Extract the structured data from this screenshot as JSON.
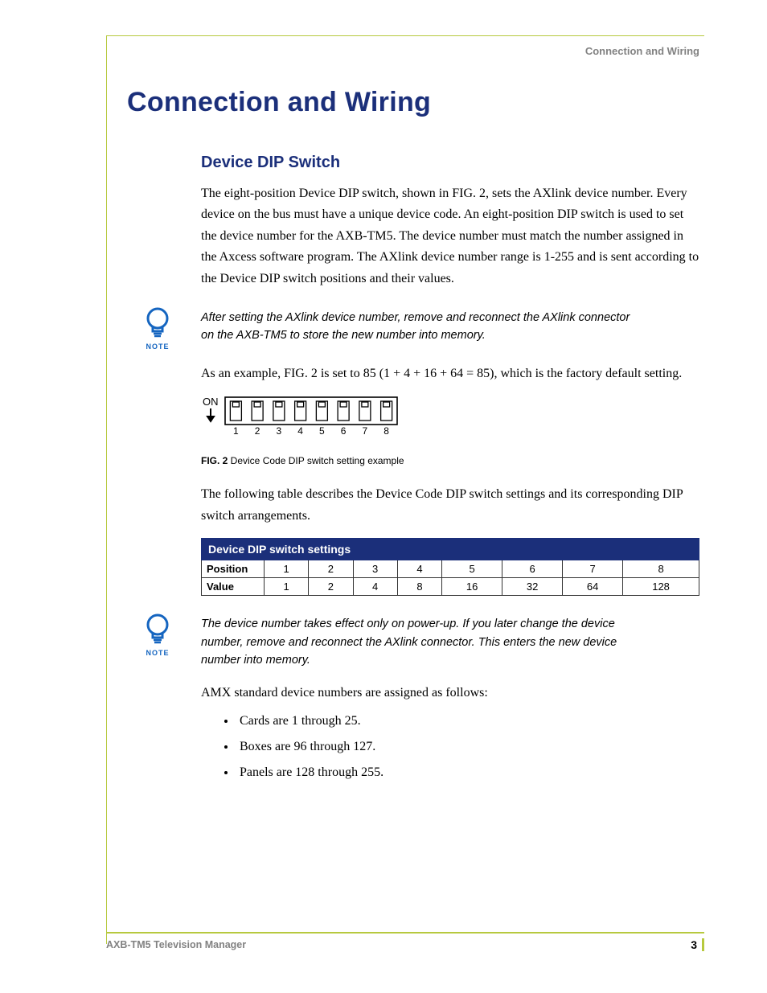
{
  "colors": {
    "brand_blue": "#1b2f7a",
    "rule_green": "#b7c93e",
    "grey_text": "#828282",
    "note_blue": "#1565c0",
    "black": "#000000",
    "white": "#ffffff"
  },
  "header": {
    "running_title": "Connection and Wiring"
  },
  "title": "Connection and Wiring",
  "section": {
    "heading": "Device DIP Switch",
    "intro": "The eight-position Device DIP switch, shown in FIG. 2, sets the AXlink device number. Every device on the bus must have a unique device code. An eight-position DIP switch is used to set the device number for the AXB-TM5. The device number must match the number assigned in the Axcess software program. The AXlink device number range is 1-255 and is sent according to the Device DIP switch positions and their values.",
    "example_line": "As an example, FIG. 2 is set to 85 (1 + 4 + 16 + 64 = 85), which is the factory default setting.",
    "fig_caption_bold": "FIG. 2",
    "fig_caption_rest": "  Device Code DIP switch setting example",
    "table_intro": "The following table describes the Device Code DIP switch settings and its corresponding DIP switch arrangements.",
    "amx_line": "AMX standard device numbers are assigned as follows:"
  },
  "note1": {
    "label": "NOTE",
    "text": "After setting the AXlink device number, remove and reconnect the AXlink connector on the AXB-TM5 to store the new number into memory."
  },
  "note2": {
    "label": "NOTE",
    "text": "The device number takes effect only on power-up. If you later change the device number, remove and reconnect the AXlink connector. This enters the new device number into memory."
  },
  "dip_figure": {
    "on_label": "ON",
    "positions": [
      "1",
      "2",
      "3",
      "4",
      "5",
      "6",
      "7",
      "8"
    ],
    "switch_down": [
      true,
      false,
      true,
      false,
      true,
      false,
      true,
      false
    ]
  },
  "table": {
    "title": "Device DIP switch settings",
    "row_labels": [
      "Position",
      "Value"
    ],
    "positions": [
      "1",
      "2",
      "3",
      "4",
      "5",
      "6",
      "7",
      "8"
    ],
    "values": [
      "1",
      "2",
      "4",
      "8",
      "16",
      "32",
      "64",
      "128"
    ]
  },
  "bullets": [
    "Cards are 1 through 25.",
    "Boxes are 96 through 127.",
    "Panels are 128 through 255."
  ],
  "footer": {
    "left": "AXB-TM5 Television Manager",
    "page": "3"
  }
}
